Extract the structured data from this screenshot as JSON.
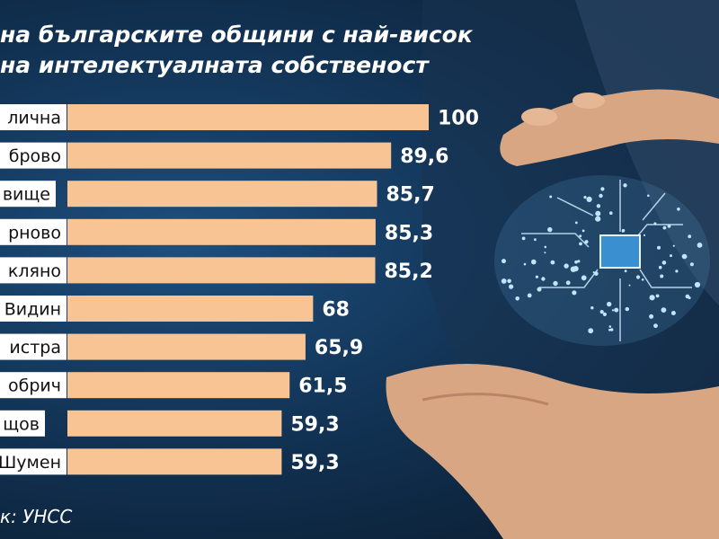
{
  "chart_data": {
    "type": "bar",
    "orientation": "horizontal",
    "title_lines": [
      "на българските общини с най-висок",
      "на интелектуалната собственост"
    ],
    "categories": [
      "лична",
      "брово",
      "вище",
      "рново",
      "кляно",
      "Видин",
      "истра",
      "обрич",
      "щов",
      "Шумен"
    ],
    "values": [
      100,
      89.6,
      85.7,
      85.3,
      85.2,
      68,
      65.9,
      61.5,
      59.3,
      59.3
    ],
    "value_labels": [
      "100",
      "89,6",
      "85,7",
      "85,3",
      "85,2",
      "68",
      "65,9",
      "61,5",
      "59,3",
      "59,3"
    ],
    "xlim": [
      0,
      100
    ],
    "grid": false,
    "legend": "none",
    "source": "к: УНСС"
  },
  "colors": {
    "bar": "#f8c494",
    "label_box": "#ffffff",
    "text_dark": "#111111",
    "text_light": "#ffffff"
  },
  "decoration": {
    "background_image": "brain-circuit-hands-photo"
  }
}
